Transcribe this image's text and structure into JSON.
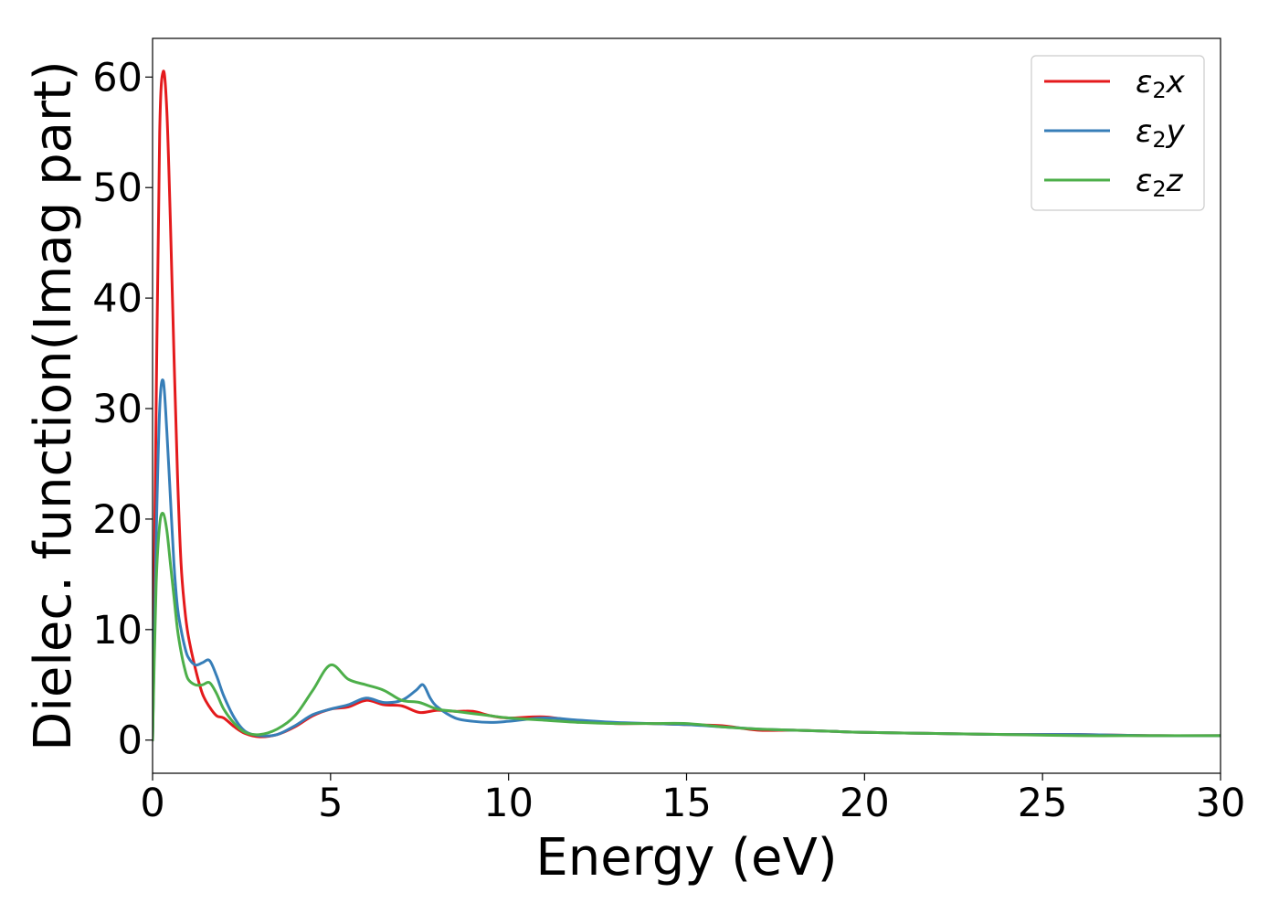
{
  "chart_data": {
    "type": "line",
    "title": "",
    "xlabel": "Energy (eV)",
    "ylabel": "Dielec. function(Imag part)",
    "xlim": [
      0,
      30
    ],
    "ylim": [
      -3,
      63.5
    ],
    "xticks": [
      0,
      5,
      10,
      15,
      20,
      25,
      30
    ],
    "xtick_labels": [
      "0",
      "5",
      "10",
      "15",
      "20",
      "25",
      "30"
    ],
    "yticks": [
      0,
      10,
      20,
      30,
      40,
      50,
      60
    ],
    "ytick_labels": [
      "0",
      "10",
      "20",
      "30",
      "40",
      "50",
      "60"
    ],
    "grid": false,
    "legend_position": "top-right",
    "series": [
      {
        "name": "ε2x",
        "legend_symbol": "ε",
        "legend_sub": "2",
        "legend_var": "x",
        "color": "#e41a1c",
        "x": [
          0,
          0.1,
          0.2,
          0.3,
          0.4,
          0.5,
          0.6,
          0.7,
          0.8,
          0.9,
          1.0,
          1.2,
          1.4,
          1.6,
          1.8,
          2.0,
          2.3,
          2.6,
          3.0,
          3.5,
          4.0,
          4.5,
          5.0,
          5.5,
          6.0,
          6.5,
          7.0,
          7.5,
          8.0,
          8.5,
          9.0,
          9.5,
          10,
          11,
          12,
          13,
          14,
          15,
          16,
          17,
          18,
          19,
          20,
          22,
          24,
          26,
          28,
          30
        ],
        "y": [
          0,
          30,
          55,
          60.5,
          57,
          47,
          35,
          24,
          16,
          12,
          9.5,
          6.5,
          4.2,
          3.0,
          2.2,
          2.0,
          1.2,
          0.6,
          0.3,
          0.5,
          1.2,
          2.2,
          2.8,
          3.0,
          3.6,
          3.2,
          3.1,
          2.5,
          2.7,
          2.6,
          2.6,
          2.2,
          2.0,
          2.1,
          1.7,
          1.5,
          1.5,
          1.4,
          1.3,
          0.9,
          0.9,
          0.8,
          0.7,
          0.6,
          0.5,
          0.5,
          0.4,
          0.4
        ]
      },
      {
        "name": "ε2y",
        "legend_symbol": "ε",
        "legend_sub": "2",
        "legend_var": "y",
        "color": "#377eb8",
        "x": [
          0,
          0.1,
          0.2,
          0.3,
          0.4,
          0.5,
          0.6,
          0.7,
          0.8,
          0.9,
          1.0,
          1.2,
          1.4,
          1.6,
          1.8,
          2.0,
          2.3,
          2.6,
          3.0,
          3.5,
          4.0,
          4.5,
          5.0,
          5.5,
          6.0,
          6.5,
          7.0,
          7.4,
          7.6,
          7.8,
          8.0,
          8.5,
          9.0,
          9.5,
          10,
          11,
          12,
          13,
          14,
          15,
          16,
          17,
          18,
          19,
          20,
          22,
          24,
          26,
          28,
          30
        ],
        "y": [
          0,
          18,
          30,
          32.5,
          28,
          22,
          16,
          12,
          10,
          8.5,
          7.5,
          6.8,
          7.0,
          7.2,
          5.8,
          4.0,
          2.0,
          0.8,
          0.4,
          0.5,
          1.3,
          2.3,
          2.8,
          3.2,
          3.8,
          3.4,
          3.6,
          4.5,
          5.0,
          3.8,
          3.0,
          2.0,
          1.7,
          1.6,
          1.7,
          2.0,
          1.8,
          1.6,
          1.5,
          1.4,
          1.2,
          1.0,
          0.9,
          0.8,
          0.7,
          0.6,
          0.5,
          0.5,
          0.4,
          0.4
        ]
      },
      {
        "name": "ε2z",
        "legend_symbol": "ε",
        "legend_sub": "2",
        "legend_var": "z",
        "color": "#4daf4a",
        "x": [
          0,
          0.1,
          0.2,
          0.3,
          0.4,
          0.5,
          0.6,
          0.7,
          0.8,
          0.9,
          1.0,
          1.2,
          1.4,
          1.6,
          1.8,
          2.0,
          2.3,
          2.6,
          3.0,
          3.5,
          4.0,
          4.5,
          5.0,
          5.5,
          6.0,
          6.5,
          7.0,
          7.5,
          8.0,
          8.5,
          9.0,
          9.5,
          10,
          11,
          12,
          13,
          14,
          15,
          16,
          17,
          18,
          19,
          20,
          22,
          24,
          26,
          28,
          30
        ],
        "y": [
          0,
          14,
          19.5,
          20.5,
          19,
          16,
          13,
          10,
          8,
          6.5,
          5.5,
          5.0,
          5.0,
          5.2,
          4.2,
          2.8,
          1.5,
          0.7,
          0.5,
          1.0,
          2.2,
          4.5,
          6.8,
          5.5,
          5.0,
          4.5,
          3.6,
          3.4,
          2.8,
          2.6,
          2.4,
          2.2,
          2.0,
          1.8,
          1.6,
          1.5,
          1.5,
          1.5,
          1.2,
          1.0,
          0.9,
          0.8,
          0.7,
          0.6,
          0.5,
          0.4,
          0.4,
          0.4
        ]
      }
    ]
  }
}
